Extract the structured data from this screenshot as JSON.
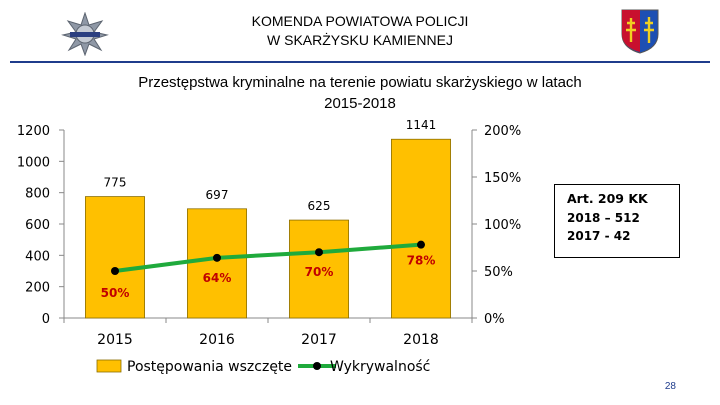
{
  "header": {
    "line1": "KOMENDA POWIATOWA POLICJI",
    "line2": "W SKARŻYSKU KAMIENNEJ"
  },
  "title_line1": "Przestępstwa kryminalne na terenie powiatu skarżyskiego w latach",
  "title_line2": "2015-2018",
  "chart_data": {
    "type": "bar",
    "categories": [
      "2015",
      "2016",
      "2017",
      "2018"
    ],
    "series": [
      {
        "name": "Postępowania wszczęte",
        "type": "bar",
        "axis": "left",
        "values": [
          775,
          697,
          625,
          1141
        ],
        "color": "#FFC000"
      },
      {
        "name": "Wykrywalność",
        "type": "line",
        "axis": "right",
        "values": [
          50,
          64,
          70,
          78
        ],
        "unit": "%",
        "color": "#1FAA3C"
      }
    ],
    "bar_labels": [
      "775",
      "697",
      "625",
      "1141"
    ],
    "line_labels": [
      "50%",
      "64%",
      "70%",
      "78%"
    ],
    "y_left": {
      "ylim": [
        0,
        1200
      ],
      "ticks": [
        "0",
        "200",
        "400",
        "600",
        "800",
        "1000",
        "1200"
      ]
    },
    "y_right": {
      "ylim": [
        0,
        200
      ],
      "ticks": [
        "0%",
        "50%",
        "100%",
        "150%",
        "200%"
      ]
    },
    "legend_position": "bottom",
    "colors": {
      "bar": "#FFC000",
      "bar_border": "#8C6E00",
      "line": "#1FAA3C",
      "marker": "#000000",
      "line_label": "#C00000"
    }
  },
  "art_box": {
    "heading": "Art. 209 KK",
    "line1": "2018 – 512",
    "line2": "2017 - 42"
  },
  "page_number": "28"
}
